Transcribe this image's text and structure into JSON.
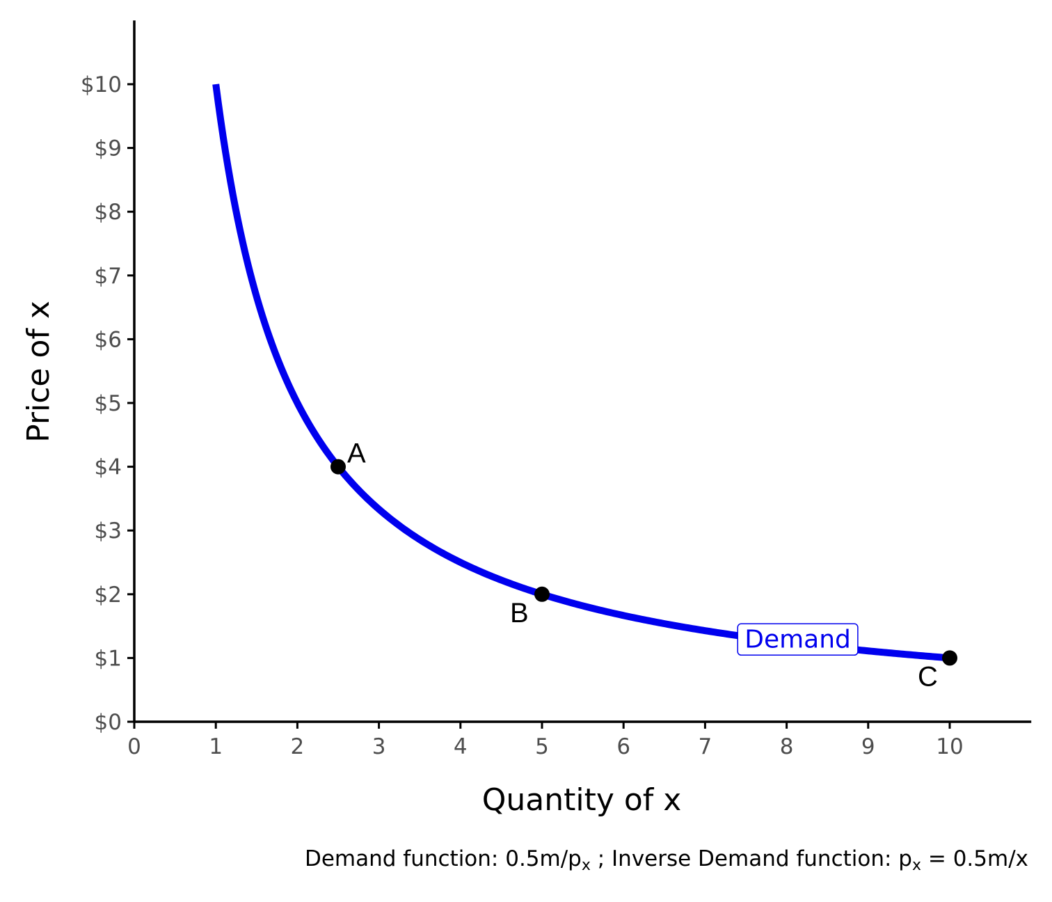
{
  "chart_data": {
    "type": "line",
    "xlabel": "Quantity of x",
    "ylabel": "Price of x",
    "xlim": [
      0,
      11
    ],
    "ylim": [
      0,
      11
    ],
    "x_ticks": [
      0,
      1,
      2,
      3,
      4,
      5,
      6,
      7,
      8,
      9,
      10
    ],
    "x_tick_labels": [
      "0",
      "1",
      "2",
      "3",
      "4",
      "5",
      "6",
      "7",
      "8",
      "9",
      "10"
    ],
    "y_ticks": [
      0,
      1,
      2,
      3,
      4,
      5,
      6,
      7,
      8,
      9,
      10
    ],
    "y_tick_labels": [
      "$0",
      "$1",
      "$2",
      "$3",
      "$4",
      "$5",
      "$6",
      "$7",
      "$8",
      "$9",
      "$10"
    ],
    "grid": false,
    "series": [
      {
        "name": "Demand",
        "color": "#0000ee",
        "function": "p = 10 / x",
        "x_range": [
          1,
          10
        ],
        "label": "Demand",
        "label_position": {
          "x": 7.3,
          "y": 1.34
        }
      }
    ],
    "points": [
      {
        "label": "A",
        "x": 2.5,
        "y": 4,
        "label_anchor": "upper-right"
      },
      {
        "label": "B",
        "x": 5,
        "y": 2,
        "label_anchor": "lower-left"
      },
      {
        "label": "C",
        "x": 10,
        "y": 1,
        "label_anchor": "lower-left"
      }
    ],
    "caption": {
      "part1": "Demand function: 0.5m/p",
      "sub1": "x",
      "part2": " ; Inverse Demand function: p",
      "sub2": "x",
      "part3": " = 0.5m/x"
    }
  },
  "colors": {
    "curve": "#0000ee",
    "axis": "#000000",
    "tick_text": "#4d4d4d",
    "point": "#000000"
  }
}
